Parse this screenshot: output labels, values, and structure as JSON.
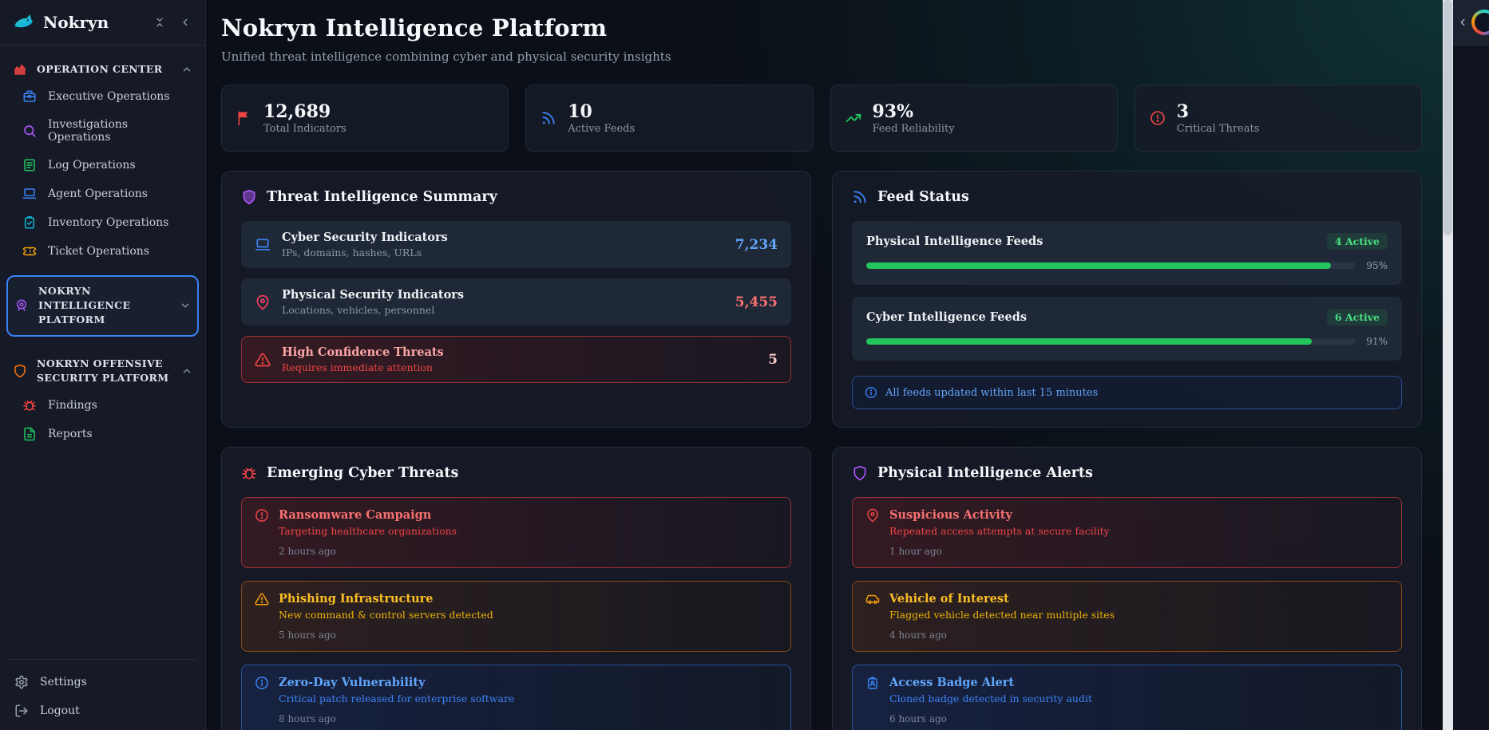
{
  "colors": {
    "accent_blue": "#3b82f6",
    "critical_red": "#ef4444",
    "warning_orange": "#f59e0b",
    "success_green": "#22c55e",
    "purple": "#a855f7",
    "teal_glow": "#115452"
  },
  "sidebar": {
    "brand": "Nokryn",
    "sections": [
      {
        "label": "OPERATION CENTER",
        "icon": "area-chart-icon",
        "chevron": "up"
      },
      {
        "label": "NOKRYN INTELLIGENCE PLATFORM",
        "icon": "webcam-icon",
        "chevron": "down",
        "selected": true
      },
      {
        "label": "NOKRYN OFFENSIVE SECURITY PLATFORM",
        "icon": "shield-icon",
        "chevron": "up"
      }
    ],
    "operation_items": [
      {
        "label": "Executive Operations",
        "icon": "briefcase-icon"
      },
      {
        "label": "Investigations Operations",
        "icon": "search-icon"
      },
      {
        "label": "Log Operations",
        "icon": "file-text-icon"
      },
      {
        "label": "Agent Operations",
        "icon": "laptop-icon"
      },
      {
        "label": "Inventory Operations",
        "icon": "clipboard-check-icon"
      },
      {
        "label": "Ticket Operations",
        "icon": "ticket-icon"
      }
    ],
    "offensive_items": [
      {
        "label": "Findings",
        "icon": "bug-icon"
      },
      {
        "label": "Reports",
        "icon": "file-icon"
      }
    ],
    "footer_items": [
      {
        "label": "Settings",
        "icon": "gear-icon"
      },
      {
        "label": "Logout",
        "icon": "logout-icon"
      }
    ]
  },
  "header": {
    "title": "Nokryn Intelligence Platform",
    "subtitle": "Unified threat intelligence combining cyber and physical security insights"
  },
  "stats": [
    {
      "value": "12,689",
      "label": "Total Indicators",
      "icon": "flag-icon",
      "color": "#ef4444"
    },
    {
      "value": "10",
      "label": "Active Feeds",
      "icon": "rss-icon",
      "color": "#3b82f6"
    },
    {
      "value": "93%",
      "label": "Feed Reliability",
      "icon": "trending-up-icon",
      "color": "#22c55e"
    },
    {
      "value": "3",
      "label": "Critical Threats",
      "icon": "alert-circle-icon",
      "color": "#ef4444"
    }
  ],
  "threat_summary": {
    "title": "Threat Intelligence Summary",
    "icon": "shield-icon",
    "rows": [
      {
        "title": "Cyber Security Indicators",
        "subtitle": "IPs, domains, hashes, URLs",
        "value": "7,234",
        "icon": "laptop-icon",
        "value_color": "#60a5fa"
      },
      {
        "title": "Physical Security Indicators",
        "subtitle": "Locations, vehicles, personnel",
        "value": "5,455",
        "icon": "map-pin-icon",
        "value_color": "#f87171"
      },
      {
        "title": "High Confidence Threats",
        "subtitle": "Requires immediate attention",
        "value": "5",
        "icon": "alert-triangle-icon",
        "severity": "critical"
      }
    ]
  },
  "feed_status": {
    "title": "Feed Status",
    "icon": "rss-icon",
    "feeds": [
      {
        "name": "Physical Intelligence Feeds",
        "badge": "4 Active",
        "percent_label": "95%",
        "percent": 95
      },
      {
        "name": "Cyber Intelligence Feeds",
        "badge": "6 Active",
        "percent_label": "91%",
        "percent": 91
      }
    ],
    "note": "All feeds updated within last 15 minutes"
  },
  "emerging_threats": {
    "title": "Emerging Cyber Threats",
    "icon": "bug-icon",
    "alerts": [
      {
        "title": "Ransomware Campaign",
        "subtitle": "Targeting healthcare organizations",
        "time": "2 hours ago",
        "severity": "critical",
        "icon": "alert-circle-icon"
      },
      {
        "title": "Phishing Infrastructure",
        "subtitle": "New command & control servers detected",
        "time": "5 hours ago",
        "severity": "warning",
        "icon": "alert-triangle-icon"
      },
      {
        "title": "Zero-Day Vulnerability",
        "subtitle": "Critical patch released for enterprise software",
        "time": "8 hours ago",
        "severity": "info",
        "icon": "info-icon"
      }
    ]
  },
  "physical_alerts": {
    "title": "Physical Intelligence Alerts",
    "icon": "shield-icon",
    "alerts": [
      {
        "title": "Suspicious Activity",
        "subtitle": "Repeated access attempts at secure facility",
        "time": "1 hour ago",
        "severity": "critical",
        "icon": "map-pin-icon"
      },
      {
        "title": "Vehicle of Interest",
        "subtitle": "Flagged vehicle detected near multiple sites",
        "time": "4 hours ago",
        "severity": "warning",
        "icon": "car-icon"
      },
      {
        "title": "Access Badge Alert",
        "subtitle": "Cloned badge detected in security audit",
        "time": "6 hours ago",
        "severity": "info",
        "icon": "id-badge-icon"
      }
    ]
  }
}
